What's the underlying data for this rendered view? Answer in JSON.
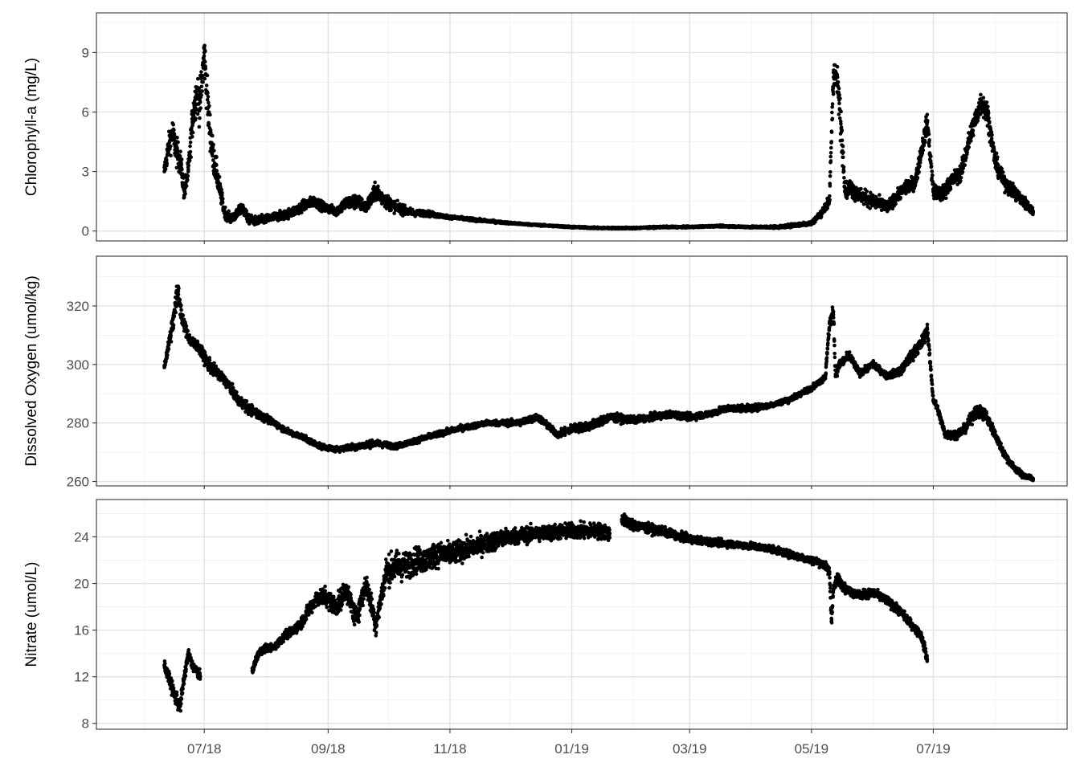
{
  "chart_data": [
    {
      "type": "scatter",
      "ylabel": "Chlorophyll-a (mg/L)",
      "ylim": [
        -0.5,
        11.0
      ],
      "yticks": [
        0,
        3,
        6,
        9
      ],
      "grid": true,
      "series": [
        {
          "x": [
            "2018-06-11",
            "2018-06-13",
            "2018-06-15",
            "2018-06-17",
            "2018-06-19",
            "2018-06-21",
            "2018-06-23",
            "2018-06-25",
            "2018-06-27",
            "2018-06-29",
            "2018-07-01",
            "2018-07-03",
            "2018-07-05",
            "2018-07-08",
            "2018-07-11",
            "2018-07-14",
            "2018-07-17",
            "2018-07-20",
            "2018-07-23",
            "2018-07-27",
            "2018-08-01",
            "2018-08-05",
            "2018-08-10",
            "2018-08-15",
            "2018-08-20",
            "2018-08-25",
            "2018-08-30",
            "2018-09-05",
            "2018-09-10",
            "2018-09-15",
            "2018-09-20",
            "2018-09-25",
            "2018-09-30",
            "2018-10-05",
            "2018-10-10",
            "2018-10-15",
            "2018-10-20",
            "2018-10-25",
            "2018-11-01",
            "2018-11-10",
            "2018-11-20",
            "2018-12-01",
            "2018-12-15",
            "2019-01-01",
            "2019-01-15",
            "2019-02-01",
            "2019-02-15",
            "2019-03-01",
            "2019-03-15",
            "2019-04-01",
            "2019-04-15",
            "2019-05-01",
            "2019-05-05",
            "2019-05-10",
            "2019-05-12",
            "2019-05-14",
            "2019-05-16",
            "2019-05-18",
            "2019-05-20",
            "2019-05-25",
            "2019-06-01",
            "2019-06-08",
            "2019-06-15",
            "2019-06-22",
            "2019-06-28",
            "2019-07-01",
            "2019-07-05",
            "2019-07-10",
            "2019-07-15",
            "2019-07-20",
            "2019-07-25",
            "2019-07-28",
            "2019-08-01",
            "2019-08-05",
            "2019-08-10",
            "2019-08-15",
            "2019-08-20"
          ],
          "y": [
            3.0,
            4.2,
            5.0,
            4.0,
            3.5,
            2.0,
            3.0,
            5.5,
            7.0,
            6.5,
            9.0,
            6.0,
            4.0,
            2.5,
            1.0,
            0.6,
            0.8,
            1.2,
            0.6,
            0.5,
            0.6,
            0.7,
            0.8,
            1.0,
            1.3,
            1.5,
            1.2,
            1.0,
            1.4,
            1.5,
            1.2,
            2.0,
            1.5,
            1.2,
            1.0,
            0.9,
            0.9,
            0.8,
            0.7,
            0.6,
            0.5,
            0.4,
            0.3,
            0.2,
            0.15,
            0.15,
            0.2,
            0.2,
            0.25,
            0.2,
            0.2,
            0.4,
            0.8,
            1.5,
            8.0,
            7.5,
            5.0,
            2.0,
            2.2,
            1.8,
            1.5,
            1.2,
            2.0,
            2.5,
            5.5,
            2.0,
            1.8,
            2.5,
            3.0,
            5.0,
            6.5,
            6.0,
            3.5,
            2.5,
            2.0,
            1.5,
            1.0
          ],
          "spread": [
            0.6,
            0.8,
            1.0,
            1.0,
            0.9,
            0.7,
            0.8,
            1.2,
            1.4,
            1.5,
            1.6,
            1.4,
            1.2,
            0.8,
            0.4,
            0.3,
            0.3,
            0.4,
            0.3,
            0.3,
            0.3,
            0.3,
            0.3,
            0.35,
            0.35,
            0.35,
            0.3,
            0.3,
            0.45,
            0.5,
            0.4,
            0.6,
            0.5,
            0.35,
            0.3,
            0.2,
            0.2,
            0.15,
            0.1,
            0.1,
            0.08,
            0.06,
            0.05,
            0.05,
            0.05,
            0.05,
            0.05,
            0.05,
            0.05,
            0.06,
            0.08,
            0.15,
            0.2,
            0.4,
            1.2,
            1.0,
            1.4,
            0.5,
            0.6,
            0.5,
            0.5,
            0.4,
            0.4,
            0.5,
            0.7,
            0.5,
            0.5,
            0.5,
            0.6,
            0.7,
            0.8,
            0.8,
            0.6,
            0.5,
            0.5,
            0.4,
            0.3
          ]
        }
      ]
    },
    {
      "type": "scatter",
      "ylabel": "Dissolved Oxygen (umol/kg)",
      "ylim": [
        258.5,
        337.0
      ],
      "yticks": [
        260,
        280,
        300,
        320
      ],
      "grid": true,
      "series": [
        {
          "x": [
            "2018-06-11",
            "2018-06-14",
            "2018-06-16",
            "2018-06-18",
            "2018-06-20",
            "2018-06-24",
            "2018-06-28",
            "2018-07-03",
            "2018-07-08",
            "2018-07-13",
            "2018-07-18",
            "2018-07-23",
            "2018-07-28",
            "2018-08-05",
            "2018-08-12",
            "2018-08-20",
            "2018-08-28",
            "2018-09-05",
            "2018-09-15",
            "2018-09-25",
            "2018-10-05",
            "2018-10-15",
            "2018-10-25",
            "2018-11-05",
            "2018-11-20",
            "2018-12-05",
            "2018-12-15",
            "2018-12-25",
            "2019-01-01",
            "2019-01-10",
            "2019-01-20",
            "2019-02-01",
            "2019-02-10",
            "2019-02-20",
            "2019-03-01",
            "2019-03-10",
            "2019-03-20",
            "2019-04-01",
            "2019-04-10",
            "2019-04-20",
            "2019-05-01",
            "2019-05-05",
            "2019-05-08",
            "2019-05-10",
            "2019-05-12",
            "2019-05-13",
            "2019-05-15",
            "2019-05-20",
            "2019-05-25",
            "2019-06-01",
            "2019-06-08",
            "2019-06-15",
            "2019-06-20",
            "2019-06-25",
            "2019-06-28",
            "2019-07-01",
            "2019-07-03",
            "2019-07-07",
            "2019-07-12",
            "2019-07-17",
            "2019-07-22",
            "2019-07-27",
            "2019-08-01",
            "2019-08-05",
            "2019-08-10",
            "2019-08-15",
            "2019-08-20"
          ],
          "y": [
            299,
            310,
            318,
            325,
            315,
            308,
            306,
            300,
            297,
            293,
            288,
            285,
            283,
            280,
            277,
            275,
            272,
            271,
            272,
            273,
            272,
            274,
            276,
            278,
            280,
            280,
            282,
            276,
            278,
            279,
            282,
            281,
            282,
            283,
            282,
            283,
            285,
            285,
            286,
            288,
            292,
            294,
            296,
            314,
            318,
            296,
            300,
            303,
            297,
            300,
            296,
            298,
            303,
            307,
            312,
            288,
            285,
            276,
            276,
            278,
            284,
            283,
            276,
            270,
            265,
            262,
            261
          ],
          "spread": [
            1.5,
            4,
            6,
            6,
            3,
            2.5,
            2.5,
            3,
            2.5,
            2.5,
            2.5,
            2.5,
            2,
            1.5,
            1.2,
            1.2,
            1.2,
            1.2,
            1.5,
            1.5,
            1.2,
            1.2,
            1.2,
            1.2,
            1.2,
            1.5,
            1.5,
            1.5,
            2,
            2,
            2,
            1.5,
            1.5,
            1.5,
            1.5,
            1.5,
            1.5,
            1.5,
            1.2,
            1.2,
            1.2,
            1.2,
            1.5,
            3,
            3,
            2,
            2,
            2,
            1.5,
            1.5,
            1.5,
            2,
            2.5,
            3,
            3,
            1.5,
            2,
            2,
            2,
            2,
            3,
            3,
            2,
            2,
            1.5,
            1.2,
            1.2
          ]
        }
      ]
    },
    {
      "type": "scatter",
      "ylabel": "Nitrate (umol/L)",
      "ylim": [
        7.5,
        27.2
      ],
      "yticks": [
        8,
        12,
        16,
        20,
        24
      ],
      "grid": true,
      "series": [
        {
          "x": [
            "2018-06-11",
            "2018-06-13",
            "2018-06-15",
            "2018-06-17",
            "2018-06-19",
            "2018-06-21",
            "2018-06-23",
            "2018-06-25",
            "2018-06-27",
            "2018-06-29"
          ],
          "y": [
            13.0,
            12.0,
            11.0,
            10.0,
            9.5,
            12.0,
            14.0,
            13.0,
            12.5,
            12.0
          ],
          "spread": [
            0.6,
            0.7,
            0.8,
            0.8,
            0.8,
            0.8,
            0.6,
            0.6,
            0.6,
            0.6
          ]
        },
        {
          "x": [
            "2018-07-25",
            "2018-07-28",
            "2018-08-01",
            "2018-08-05",
            "2018-08-10",
            "2018-08-15",
            "2018-08-20",
            "2018-08-25",
            "2018-08-30",
            "2018-09-05",
            "2018-09-10",
            "2018-09-15",
            "2018-09-20",
            "2018-09-25",
            "2018-09-30",
            "2018-10-05",
            "2018-10-10",
            "2018-10-15",
            "2018-10-20",
            "2018-10-25",
            "2018-11-01",
            "2018-11-10",
            "2018-11-20",
            "2018-12-01",
            "2018-12-15",
            "2019-01-01",
            "2019-01-15",
            "2019-01-20",
            "2019-01-23",
            "2019-01-26",
            "2019-02-01",
            "2019-02-15",
            "2019-03-01",
            "2019-03-15",
            "2019-04-01",
            "2019-04-10",
            "2019-04-20",
            "2019-05-01",
            "2019-05-05",
            "2019-05-08",
            "2019-05-10",
            "2019-05-11",
            "2019-05-12",
            "2019-05-14",
            "2019-05-18",
            "2019-05-25",
            "2019-06-01",
            "2019-06-08",
            "2019-06-15",
            "2019-06-20",
            "2019-06-25",
            "2019-06-28"
          ],
          "y": [
            12.5,
            14.0,
            14.5,
            14.5,
            15.5,
            16.0,
            17.0,
            18.5,
            19.0,
            18.0,
            19.5,
            17.0,
            20.0,
            16.5,
            21.0,
            21.5,
            21.5,
            22.0,
            22.0,
            22.5,
            22.5,
            23.0,
            23.5,
            24.0,
            24.3,
            24.5,
            24.5,
            24.3,
            null,
            25.5,
            25.0,
            24.5,
            23.8,
            23.5,
            23.2,
            23.0,
            22.5,
            22.0,
            21.8,
            21.5,
            21.0,
            17.0,
            19.5,
            20.5,
            19.5,
            19.0,
            19.2,
            18.5,
            17.5,
            16.5,
            15.5,
            13.5
          ],
          "spread": [
            0.4,
            0.5,
            0.4,
            0.4,
            0.5,
            0.6,
            0.7,
            0.9,
            1.0,
            1.2,
            1.2,
            1.3,
            1.3,
            1.3,
            1.6,
            1.8,
            1.6,
            1.5,
            1.4,
            1.4,
            1.3,
            1.2,
            1.1,
            1.0,
            0.9,
            0.9,
            0.9,
            0.9,
            0.0,
            0.7,
            0.6,
            0.5,
            0.45,
            0.4,
            0.4,
            0.4,
            0.4,
            0.45,
            0.45,
            0.45,
            0.6,
            1.0,
            0.6,
            0.6,
            0.5,
            0.5,
            0.5,
            0.5,
            0.5,
            0.5,
            0.5,
            0.6
          ]
        }
      ]
    }
  ],
  "x_axis": {
    "type": "date",
    "range": [
      "2018-05-08",
      "2019-09-06"
    ],
    "major_ticks": [
      "2018-07-01",
      "2018-09-01",
      "2018-11-01",
      "2019-01-01",
      "2019-03-01",
      "2019-05-01",
      "2019-07-01"
    ],
    "tick_labels": [
      "07/18",
      "09/18",
      "11/18",
      "01/19",
      "03/19",
      "05/19",
      "07/19"
    ],
    "minor_ticks": [
      "2018-06-01",
      "2018-08-01",
      "2018-10-01",
      "2018-12-01",
      "2019-02-01",
      "2019-04-01",
      "2019-06-01",
      "2019-08-01",
      "2019-09-01"
    ]
  }
}
